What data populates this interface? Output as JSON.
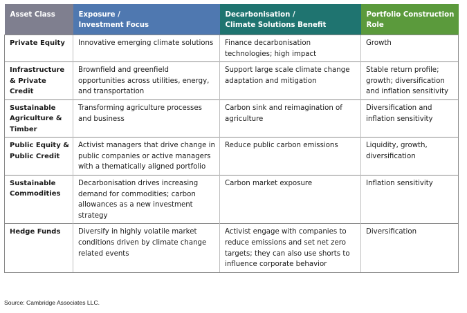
{
  "table": {
    "headers": [
      {
        "line1": "Asset Class",
        "line2": ""
      },
      {
        "line1": "Exposure /",
        "line2": "Investment Focus"
      },
      {
        "line1": "Decarbonisation /",
        "line2": "Climate Solutions Benefit"
      },
      {
        "line1": "Portfolio Construction",
        "line2": "Role"
      }
    ],
    "rows": [
      {
        "asset_class": "Private Equity",
        "exposure": "Innovative emerging climate solutions",
        "benefit": "Finance decarbonisation technologies; high impact",
        "role": "Growth"
      },
      {
        "asset_class": "Infrastructure & Private Credit",
        "exposure": "Brownfield and greenfield opportunities across utilities, energy, and transportation",
        "benefit": "Support large scale climate change adaptation and mitigation",
        "role": "Stable return profile; growth; diversification and inflation sensitivity"
      },
      {
        "asset_class": "Sustainable Agriculture & Timber",
        "exposure": "Transforming agriculture processes and business",
        "benefit": "Carbon sink and reimagination of agriculture",
        "role": "Diversification and inflation sensitivity"
      },
      {
        "asset_class": "Public Equity & Public Credit",
        "exposure": "Activist managers that drive change in public companies or active managers with a thematically aligned portfolio",
        "benefit": "Reduce public carbon emissions",
        "role": "Liquidity, growth, diversification"
      },
      {
        "asset_class": "Sustainable Commodities",
        "exposure": "Decarbonisation drives increasing demand for commodities; carbon allowances as a new investment strategy",
        "benefit": "Carbon market exposure",
        "role": "Inflation sensitivity"
      },
      {
        "asset_class": "Hedge Funds",
        "exposure": "Diversify in highly volatile market conditions driven by climate change related events",
        "benefit": "Activist engage with companies to reduce emissions and set net zero targets; they can also use shorts to influence corporate behavior",
        "role": "Diversification"
      }
    ]
  },
  "source": "Source: Cambridge Associates LLC."
}
